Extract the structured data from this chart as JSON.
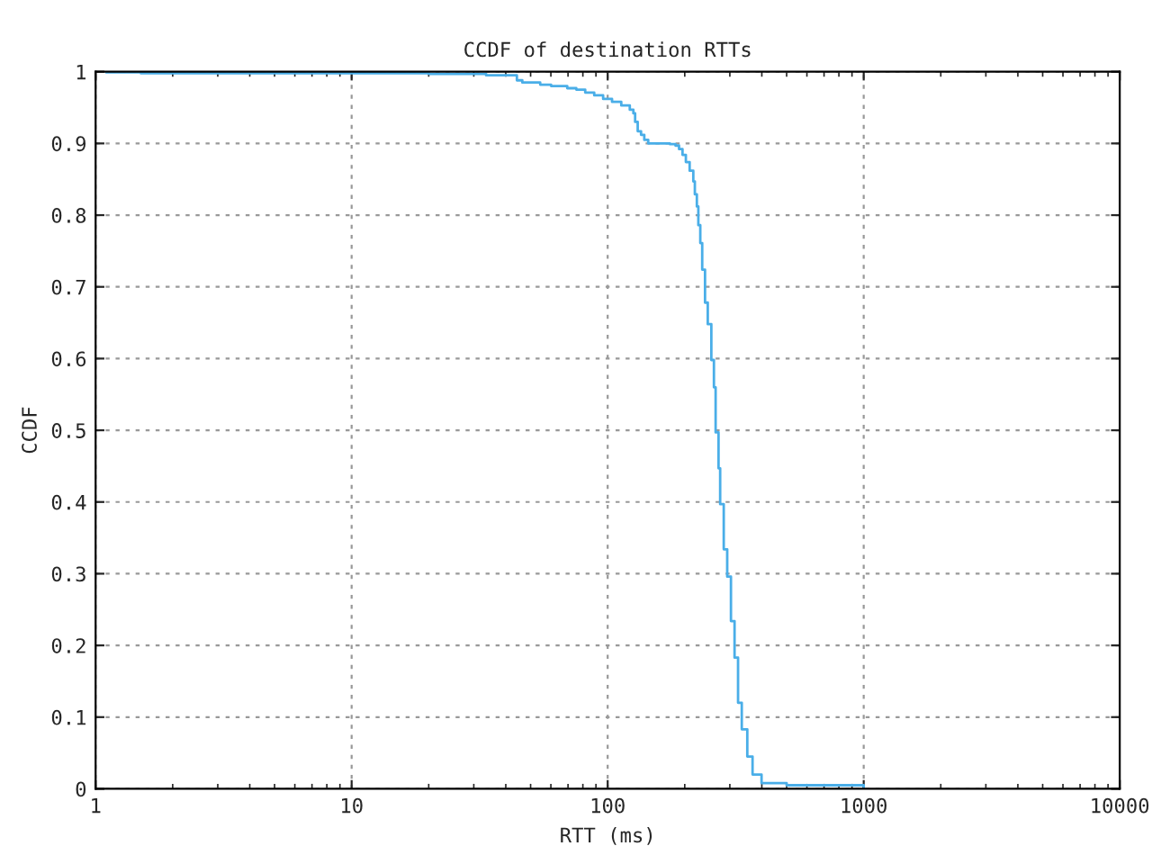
{
  "chart_data": {
    "type": "step",
    "title": "CCDF of destination RTTs",
    "xlabel": "RTT (ms)",
    "ylabel": "CCDF",
    "log": "x",
    "grid": true,
    "line_style": "solid",
    "xlim": [
      1,
      10000
    ],
    "xticks": [
      1,
      10,
      100,
      1000,
      10000
    ],
    "ylim": [
      0,
      1
    ],
    "yticks": [
      0,
      0.1,
      0.2,
      0.3,
      0.4,
      0.5,
      0.6,
      0.7,
      0.8,
      0.9,
      1
    ],
    "series": [
      {
        "color": "#4aaee8",
        "x": [
          1.1,
          1.5,
          20,
          33.5,
          44.2,
          46.4,
          54.5,
          60.1,
          69.5,
          75.4,
          81.7,
          88.6,
          96,
          104,
          113,
          122,
          126,
          128,
          131,
          135,
          139,
          144,
          175,
          184,
          190,
          196,
          202,
          209,
          216,
          219,
          223,
          226,
          230,
          234,
          240,
          246,
          254,
          260,
          264,
          271,
          275,
          284,
          293,
          303,
          313,
          323,
          334,
          351,
          368,
          399,
          500,
          1000
        ],
        "values": [
          0.999,
          0.998,
          0.997,
          0.995,
          0.988,
          0.985,
          0.982,
          0.98,
          0.977,
          0.975,
          0.971,
          0.967,
          0.962,
          0.958,
          0.953,
          0.947,
          0.942,
          0.93,
          0.917,
          0.912,
          0.905,
          0.9,
          0.899,
          0.897,
          0.892,
          0.884,
          0.874,
          0.862,
          0.847,
          0.829,
          0.812,
          0.786,
          0.761,
          0.724,
          0.678,
          0.648,
          0.598,
          0.56,
          0.497,
          0.447,
          0.397,
          0.334,
          0.296,
          0.234,
          0.183,
          0.12,
          0.083,
          0.045,
          0.02,
          0.008,
          0.005,
          0.002
        ]
      }
    ]
  }
}
